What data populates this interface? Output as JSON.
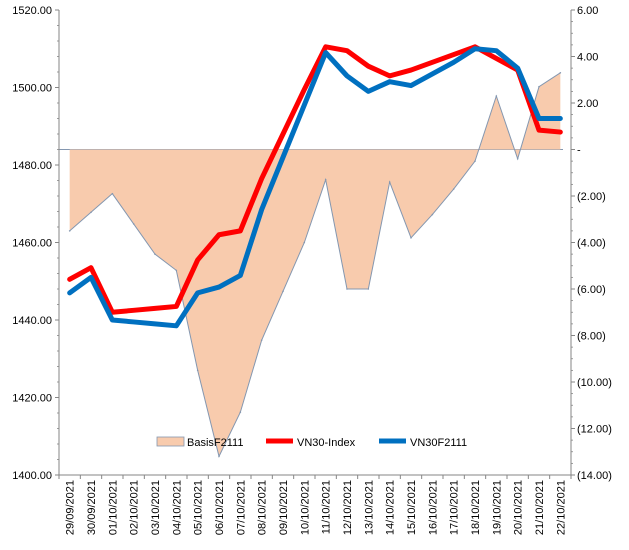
{
  "chart_data": {
    "type": "line",
    "categories": [
      "29/09/2021",
      "30/09/2021",
      "01/10/2021",
      "02/10/2021",
      "03/10/2021",
      "04/10/2021",
      "05/10/2021",
      "06/10/2021",
      "07/10/2021",
      "08/10/2021",
      "09/10/2021",
      "10/10/2021",
      "11/10/2021",
      "12/10/2021",
      "13/10/2021",
      "14/10/2021",
      "15/10/2021",
      "16/10/2021",
      "17/10/2021",
      "18/10/2021",
      "19/10/2021",
      "20/10/2021",
      "21/10/2021",
      "22/10/2021"
    ],
    "y_left": {
      "ylim": [
        1400,
        1520
      ],
      "ticks": [
        "1400.00",
        "1420.00",
        "1440.00",
        "1460.00",
        "1480.00",
        "1500.00",
        "1520.00"
      ]
    },
    "y_right": {
      "ylim": [
        -14,
        6
      ],
      "ticks": [
        "(14.00)",
        "(12.00)",
        "(10.00)",
        "(8.00)",
        "(6.00)",
        "(4.00)",
        "(2.00)",
        "-",
        "2.00",
        "4.00",
        "6.00"
      ]
    },
    "series": [
      {
        "name": "BasisF2111",
        "axis": "right",
        "kind": "area",
        "color": "#f8cbad",
        "stroke": "#8497b0",
        "values": [
          -3.5,
          -2.7,
          -1.9,
          -3.2,
          -4.5,
          -5.2,
          -9.5,
          -13.2,
          -11.3,
          -8.2,
          -6.1,
          -4,
          -1.3,
          -6,
          -6,
          -1.4,
          -3.8,
          -2.8,
          -1.7,
          -0.5,
          2.3,
          -0.4,
          2.7,
          3.3
        ]
      },
      {
        "name": "VN30-Index",
        "axis": "left",
        "kind": "line",
        "color": "#ff0000",
        "values": [
          1450.5,
          1453.5,
          1442,
          1442.5,
          1443,
          1443.5,
          1455.5,
          1462,
          1463,
          1476.5,
          1488,
          1499.5,
          1510.5,
          1509.5,
          1505.5,
          1503,
          1504.5,
          1506.5,
          1508.5,
          1510.5,
          1507.5,
          1504.5,
          1489,
          1488.5
        ]
      },
      {
        "name": "VN30F2111",
        "axis": "left",
        "kind": "line",
        "color": "#0070c0",
        "values": [
          1447,
          1451,
          1440,
          1439.5,
          1439,
          1438.5,
          1447,
          1448.5,
          1451.5,
          1468.5,
          1482,
          1495.5,
          1509,
          1503,
          1499,
          1501.5,
          1500.5,
          1503.5,
          1506.5,
          1510,
          1509.5,
          1505,
          1492,
          1492
        ]
      }
    ],
    "legend": "bottom-inside"
  }
}
